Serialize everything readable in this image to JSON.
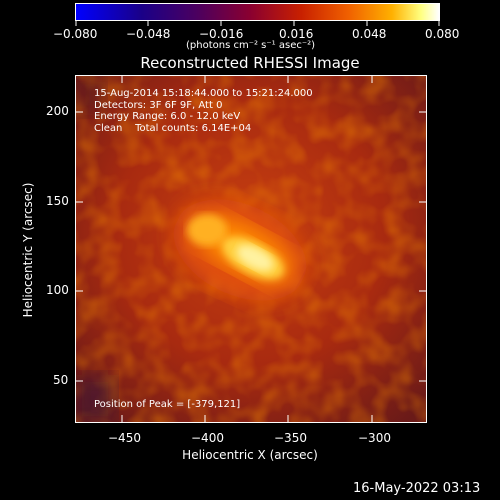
{
  "colorbar": {
    "ticks": [
      "−0.080",
      "−0.048",
      "−0.016",
      "0.016",
      "0.048",
      "0.080"
    ],
    "units": "(photons cm⁻² s⁻¹ asec⁻²)"
  },
  "title": "Reconstructed RHESSI Image",
  "annotations": {
    "time": "15-Aug-2014 15:18:44.000 to 15:21:24.000",
    "detectors": "Detectors: 3F 6F 9F, Att 0",
    "energy": "Energy Range: 6.0 - 12.0 keV",
    "method": "Clean    Total counts: 6.14E+04",
    "peak": "Position of Peak = [-379,121]"
  },
  "axes": {
    "xlabel": "Heliocentric X (arcsec)",
    "ylabel": "Heliocentric Y (arcsec)",
    "xticks": [
      "−450",
      "−400",
      "−350",
      "−300"
    ],
    "yticks": [
      "200",
      "150",
      "100",
      "50"
    ]
  },
  "footer": {
    "timestamp": "16-May-2022 03:13"
  }
}
